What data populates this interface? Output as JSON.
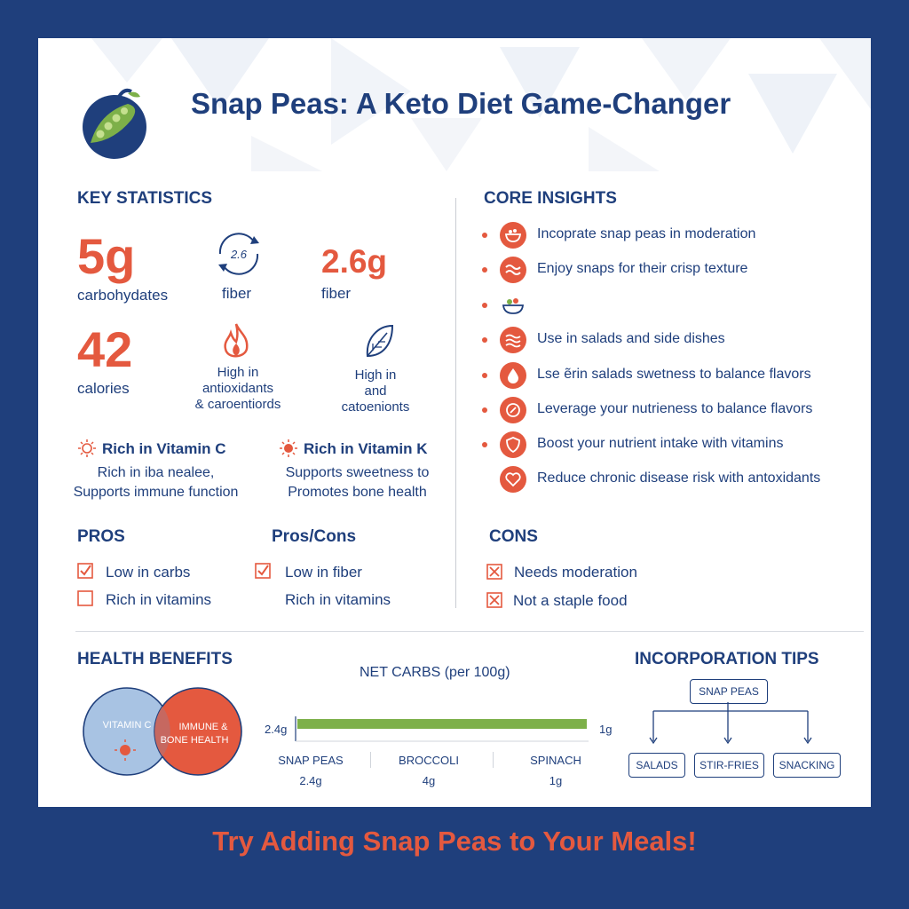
{
  "title": "Snap Peas: A Keto Diet Game-Changer",
  "colors": {
    "navy": "#1f3f7c",
    "accent": "#e4593f",
    "green": "#7db049",
    "light_blue": "#a8c3e3"
  },
  "key_statistics": {
    "heading": "KEY STATISTICS",
    "carbs_value": "5g",
    "carbs_label": "carbohydates",
    "fiber_icon_text": "2.6",
    "fiber_icon_label": "fiber",
    "fiber_value": "2.6g",
    "fiber_label": "fiber",
    "calories_value": "42",
    "calories_label": "calories",
    "antioxidants_line1": "High in",
    "antioxidants_line2": "antioxidants",
    "antioxidants_line3": "& caroentiords",
    "carotenoids_line1": "High in",
    "carotenoids_line2": "and",
    "carotenoids_line3": "catoenionts",
    "vitamin_c_title": "Rich in Vitamin C",
    "vitamin_c_line1": "Rich in iba nealee,",
    "vitamin_c_line2": "Supports immune function",
    "vitamin_k_title": "Rich in Vitamin K",
    "vitamin_k_line1": "Supports sweetness to",
    "vitamin_k_line2": "Promotes bone health"
  },
  "core_insights": {
    "heading": "CORE INSIGHTS",
    "items": [
      {
        "icon": "bowl-icon",
        "text": "Incoprate snap peas in moderation"
      },
      {
        "icon": "wave-icon",
        "text": "Enjoy snaps for their crisp texture"
      },
      {
        "icon": "salad-bowl-icon",
        "text": ""
      },
      {
        "icon": "bowl-waves-icon",
        "text": "Use in salads and side dishes"
      },
      {
        "icon": "drop-icon",
        "text": "Lse ẽrin salads swetness to balance flavors"
      },
      {
        "icon": "leaf-badge-icon",
        "text": "Leverage your nutrieness to balance flavors"
      },
      {
        "icon": "shield-icon",
        "text": "Boost your nutrient intake with vitamins"
      },
      {
        "icon": "heart-icon",
        "text": "Reduce chronic disease risk with antoxidants"
      }
    ]
  },
  "pros": {
    "heading": "PROS",
    "items": [
      {
        "text": "Low in carbs",
        "checked": true
      },
      {
        "text": "Rich in vitamins",
        "checked": false
      }
    ]
  },
  "pros_cons": {
    "heading": "Pros/Cons",
    "items": [
      {
        "text": "Low in fiber",
        "checked": true
      },
      {
        "text": "Rich in vitamins",
        "checked": false
      }
    ]
  },
  "cons": {
    "heading": "CONS",
    "items": [
      "Needs moderation",
      "Not a staple food"
    ]
  },
  "health_benefits": {
    "heading": "HEALTH BENEFITS",
    "left_label": "VITAMIN C",
    "right_label_line1": "IMMUNE &",
    "right_label_line2": "BONE HEALTH"
  },
  "net_carbs": {
    "heading": "NET CARBS (per 100g)",
    "left_value": "2.4g",
    "right_value": "1g"
  },
  "chart_data": {
    "type": "bar",
    "title": "NET CARBS (per 100g)",
    "categories": [
      "SNAP PEAS",
      "BROCCOLI",
      "SPINACH"
    ],
    "values": [
      2.4,
      4,
      1
    ],
    "value_labels": [
      "2.4g",
      "4g",
      "1g"
    ]
  },
  "incorporation_tips": {
    "heading": "INCORPORATION TIPS",
    "root": "SNAP PEAS",
    "children": [
      "SALADS",
      "STIR-FRIES",
      "SNACKING"
    ]
  },
  "footer": "Try Adding Snap Peas to Your Meals!"
}
